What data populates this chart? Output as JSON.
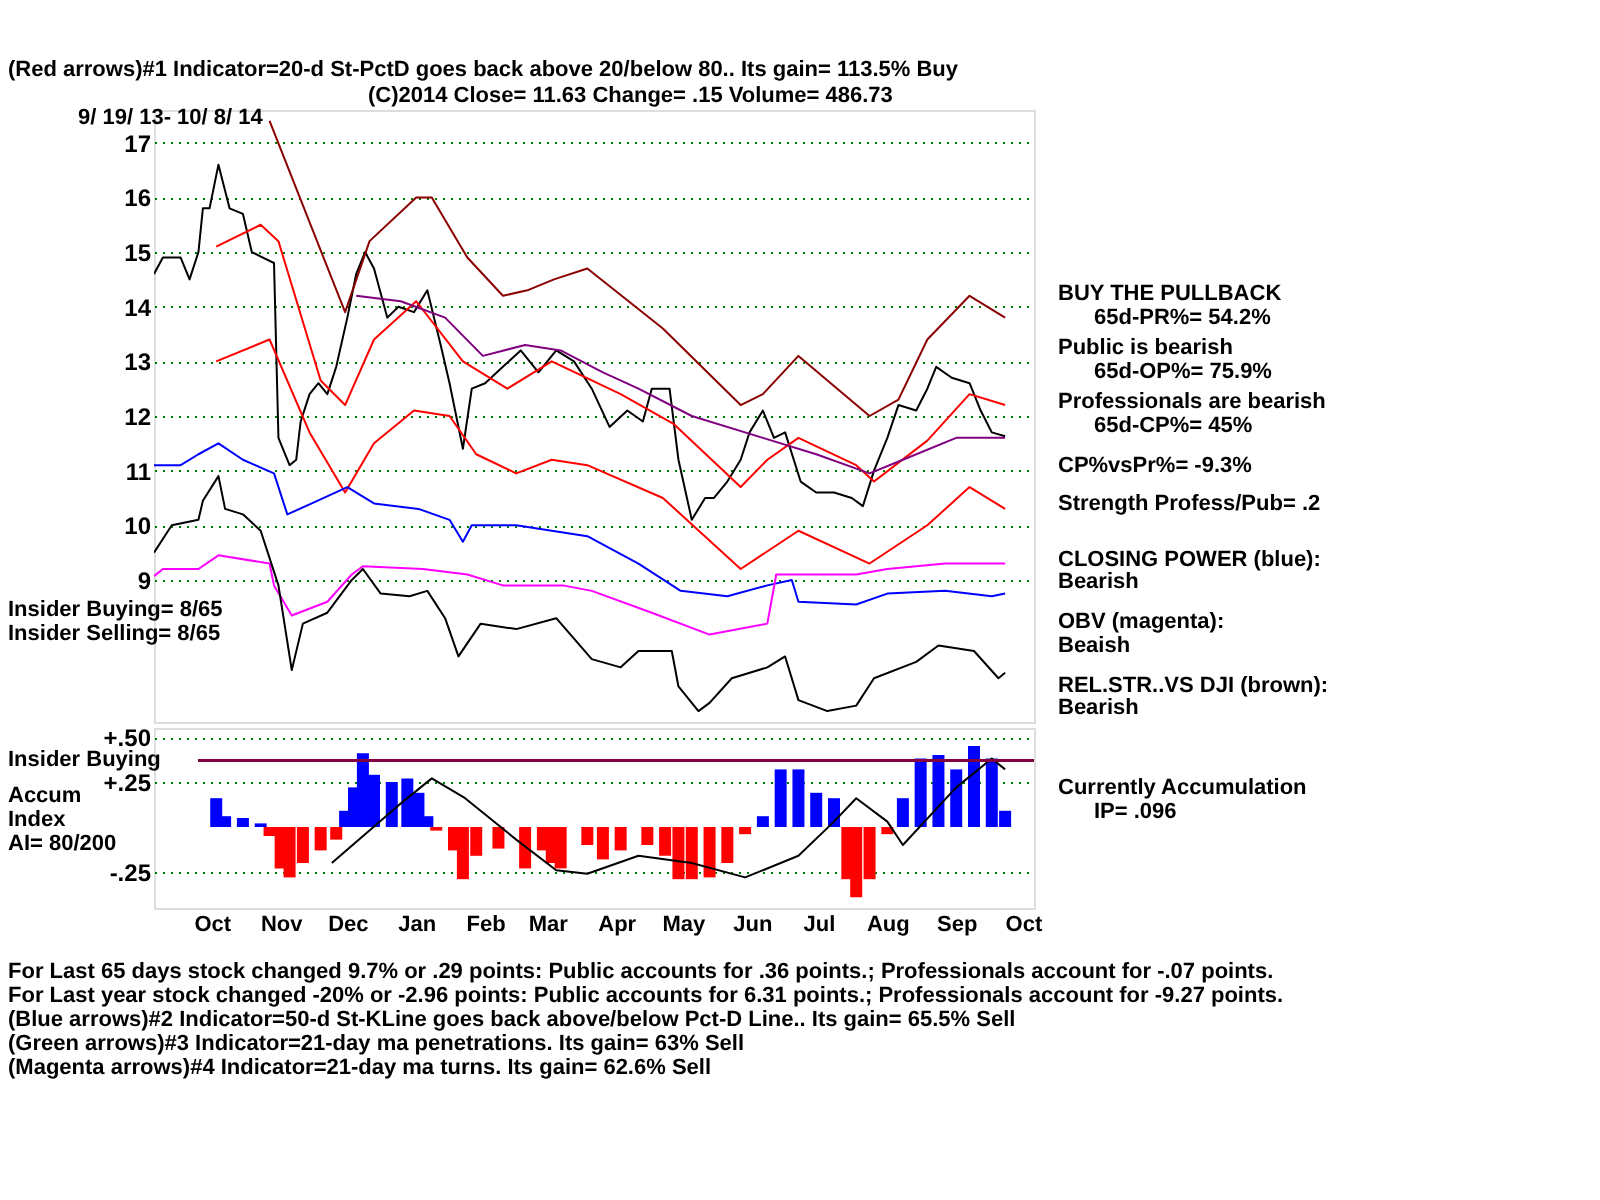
{
  "chart_data": [
    {
      "type": "line",
      "title": "(Red arrows)#1 Indicator=20-d St-PctD goes back above 20/below 80.. Its gain= 113.5% Buy",
      "subtitle": "(C)2014     Close= 11.63  Change= .15 Volume= 486.73",
      "x": [
        "2013-09-19",
        "2013-09-23",
        "2013-10-01",
        "2013-10-05",
        "2013-10-09",
        "2013-10-11",
        "2013-10-14",
        "2013-10-18",
        "2013-10-23",
        "2013-10-29",
        "2013-11-02",
        "2013-11-07",
        "2013-11-12",
        "2013-11-14",
        "2013-11-19",
        "2013-11-22",
        "2013-11-24",
        "2013-11-28",
        "2013-12-02",
        "2013-12-06",
        "2013-12-10",
        "2013-12-15",
        "2013-12-19",
        "2013-12-23",
        "2013-12-27",
        "2014-01-02",
        "2014-01-07",
        "2014-01-14",
        "2014-01-20",
        "2014-01-26",
        "2014-01-30",
        "2014-02-05",
        "2014-02-09",
        "2014-02-15",
        "2014-02-23",
        "2014-03-03",
        "2014-03-11",
        "2014-03-19",
        "2014-03-27",
        "2014-04-04",
        "2014-04-12",
        "2014-04-20",
        "2014-04-27",
        "2014-05-01",
        "2014-05-09",
        "2014-05-13",
        "2014-05-19",
        "2014-05-25",
        "2014-05-29",
        "2014-06-04",
        "2014-06-10",
        "2014-06-14",
        "2014-06-20",
        "2014-06-25",
        "2014-06-30",
        "2014-07-07",
        "2014-07-14",
        "2014-07-22",
        "2014-07-30",
        "2014-08-04",
        "2014-08-09",
        "2014-08-15",
        "2014-08-20",
        "2014-08-28",
        "2014-09-02",
        "2014-09-06",
        "2014-09-13",
        "2014-09-21",
        "2014-09-26",
        "2014-10-01",
        "2014-10-07"
      ],
      "series": [
        {
          "color": "#000000",
          "values": [
            14.6,
            14.9,
            14.9,
            14.5,
            15.0,
            15.8,
            15.8,
            16.6,
            15.8,
            15.7,
            15.0,
            14.9,
            14.8,
            11.6,
            11.1,
            11.2,
            11.9,
            12.4,
            12.6,
            12.4,
            12.9,
            13.8,
            14.6,
            15.0,
            14.7,
            13.8,
            14.0,
            13.9,
            14.3,
            13.3,
            12.6,
            11.4,
            12.5,
            12.6,
            12.9,
            13.2,
            12.8,
            13.2,
            13.0,
            12.5,
            11.8,
            12.1,
            11.9,
            12.5,
            12.5,
            11.2,
            10.1,
            10.5,
            10.5,
            10.8,
            11.2,
            11.7,
            12.1,
            11.6,
            11.7,
            10.8,
            10.6,
            10.6,
            10.5,
            10.35,
            11.0,
            11.6,
            12.2,
            12.1,
            12.5,
            12.9,
            12.7,
            12.6,
            12.1,
            11.7,
            11.63
          ]
        },
        {
          "color": "#8b0000",
          "x": [
            "2013-11-10",
            "2013-12-14",
            "2013-12-25",
            "2014-01-15",
            "2014-01-22",
            "2014-02-07",
            "2014-02-23",
            "2014-03-06",
            "2014-03-18",
            "2014-04-02",
            "2014-05-06",
            "2014-06-10",
            "2014-06-20",
            "2014-07-06",
            "2014-08-07",
            "2014-08-20",
            "2014-09-02",
            "2014-09-21",
            "2014-10-07"
          ],
          "values": [
            17.4,
            13.9,
            15.2,
            16.0,
            16.0,
            14.9,
            14.2,
            14.3,
            14.5,
            14.7,
            13.6,
            12.2,
            12.4,
            13.1,
            12.0,
            12.3,
            13.4,
            14.2,
            13.8
          ]
        },
        {
          "color": "#ff0000",
          "x": [
            "2013-10-17",
            "2013-11-06",
            "2013-11-14",
            "2013-12-03",
            "2013-12-14",
            "2013-12-27",
            "2014-01-15",
            "2014-02-05",
            "2014-02-25",
            "2014-03-17",
            "2014-04-17",
            "2014-05-11",
            "2014-06-10",
            "2014-06-22",
            "2014-07-06",
            "2014-08-01",
            "2014-08-09",
            "2014-09-02",
            "2014-09-21",
            "2014-10-07"
          ],
          "values": [
            15.1,
            15.5,
            15.2,
            12.65,
            12.2,
            13.4,
            14.1,
            13.0,
            12.5,
            13.0,
            12.4,
            11.85,
            10.7,
            11.2,
            11.6,
            11.1,
            10.8,
            11.55,
            12.4,
            12.2
          ]
        },
        {
          "color": "#ff0000",
          "x": [
            "2013-10-17",
            "2013-11-10",
            "2013-11-28",
            "2013-12-14",
            "2013-12-27",
            "2014-01-14",
            "2014-01-30",
            "2014-02-11",
            "2014-03-01",
            "2014-03-17",
            "2014-04-02",
            "2014-05-06",
            "2014-06-10",
            "2014-07-06",
            "2014-08-07",
            "2014-09-02",
            "2014-09-21",
            "2014-10-07"
          ],
          "values": [
            13.0,
            13.4,
            11.7,
            10.6,
            11.5,
            12.1,
            12.0,
            11.3,
            10.95,
            11.2,
            11.1,
            10.5,
            9.2,
            9.9,
            9.3,
            10.0,
            10.7,
            10.3
          ]
        },
        {
          "color": "#800080",
          "x": [
            "2013-12-19",
            "2014-01-08",
            "2014-01-28",
            "2014-02-14",
            "2014-03-05",
            "2014-03-21",
            "2014-04-09",
            "2014-04-25",
            "2014-05-19",
            "2014-06-20",
            "2014-07-14",
            "2014-08-07",
            "2014-08-22",
            "2014-09-15",
            "2014-10-07"
          ],
          "values": [
            14.2,
            14.1,
            13.8,
            13.1,
            13.3,
            13.2,
            12.8,
            12.5,
            12.0,
            11.6,
            11.3,
            10.95,
            11.2,
            11.6,
            11.6
          ]
        },
        {
          "color": "#0000ff",
          "x": [
            "2013-09-19",
            "2013-10-01",
            "2013-10-09",
            "2013-10-18",
            "2013-10-29",
            "2013-11-12",
            "2013-11-18",
            "2013-11-29",
            "2013-12-15",
            "2013-12-27",
            "2014-01-16",
            "2014-01-30",
            "2014-02-05",
            "2014-02-09",
            "2014-03-01",
            "2014-03-17",
            "2014-04-02",
            "2014-04-25",
            "2014-05-14",
            "2014-06-04",
            "2014-06-22",
            "2014-07-03",
            "2014-07-06",
            "2014-08-01",
            "2014-08-15",
            "2014-09-10",
            "2014-10-01",
            "2014-10-07"
          ],
          "values": [
            11.1,
            11.1,
            11.3,
            11.5,
            11.2,
            10.95,
            10.2,
            10.4,
            10.7,
            10.4,
            10.3,
            10.1,
            9.7,
            10.0,
            10.0,
            9.9,
            9.8,
            9.3,
            8.8,
            8.7,
            8.9,
            9.0,
            8.6,
            8.55,
            8.75,
            8.8,
            8.7,
            8.75
          ]
        },
        {
          "color": "#ff00ff",
          "x": [
            "2013-09-19",
            "2013-09-23",
            "2013-10-09",
            "2013-10-18",
            "2013-11-10",
            "2013-11-12",
            "2013-11-20",
            "2013-12-06",
            "2013-12-17",
            "2013-12-22",
            "2014-01-18",
            "2014-02-07",
            "2014-02-23",
            "2014-03-22",
            "2014-04-04",
            "2014-05-01",
            "2014-05-27",
            "2014-06-22",
            "2014-06-26",
            "2014-07-06",
            "2014-08-01",
            "2014-08-15",
            "2014-09-10",
            "2014-10-07"
          ],
          "values": [
            9.07,
            9.2,
            9.2,
            9.45,
            9.3,
            8.9,
            8.35,
            8.6,
            9.1,
            9.25,
            9.2,
            9.1,
            8.9,
            8.9,
            8.8,
            8.4,
            8.0,
            8.2,
            9.1,
            9.1,
            9.1,
            9.2,
            9.3,
            9.3
          ]
        },
        {
          "color": "#000000",
          "x": [
            "2013-09-19",
            "2013-09-27",
            "2013-10-09",
            "2013-10-11",
            "2013-10-18",
            "2013-10-21",
            "2013-10-29",
            "2013-11-06",
            "2013-11-14",
            "2013-11-20",
            "2013-11-25",
            "2013-12-06",
            "2013-12-17",
            "2013-12-22",
            "2013-12-30",
            "2014-01-12",
            "2014-01-20",
            "2014-01-28",
            "2014-02-03",
            "2014-02-13",
            "2014-03-01",
            "2014-03-19",
            "2014-04-04",
            "2014-04-17",
            "2014-04-25",
            "2014-05-10",
            "2014-05-13",
            "2014-05-22",
            "2014-05-27",
            "2014-06-06",
            "2014-06-22",
            "2014-06-30",
            "2014-07-06",
            "2014-07-19",
            "2014-08-01",
            "2014-08-09",
            "2014-08-28",
            "2014-09-07",
            "2014-09-23",
            "2014-10-04",
            "2014-10-07"
          ],
          "values": [
            9.5,
            10.0,
            10.1,
            10.45,
            10.9,
            10.3,
            10.2,
            9.9,
            8.9,
            7.35,
            8.2,
            8.4,
            9.0,
            9.2,
            8.75,
            8.7,
            8.8,
            8.3,
            7.6,
            8.2,
            8.1,
            8.3,
            7.55,
            7.4,
            7.7,
            7.7,
            7.05,
            6.6,
            6.75,
            7.2,
            7.4,
            7.6,
            6.8,
            6.6,
            6.7,
            7.2,
            7.5,
            7.8,
            7.7,
            7.2,
            7.3
          ]
        }
      ],
      "xlim": [
        "2013-09-19",
        "2014-10-20"
      ],
      "ylim": [
        6.4,
        17.6
      ],
      "yticks": [
        9,
        10,
        11,
        12,
        13,
        14,
        15,
        16,
        17
      ],
      "grid": "y",
      "tick_labels": "y",
      "annotations": [
        "9/ 19/ 13- 10/ 8/ 14",
        "BUY THE PULLBACK",
        "65d-PR%= 54.2%",
        "Public is bearish",
        "65d-OP%= 75.9%",
        "Professionals are bearish",
        "65d-CP%= 45%",
        "CP%vsPr%= -9.3%",
        "Strength Profess/Pub= .2",
        "CLOSING POWER (blue):",
        "Bearish",
        "OBV (magenta):",
        "Beaish",
        "REL.STR..VS DJI (brown):",
        "Bearish",
        "Insider Buying= 8/65",
        "Insider Selling= 8/65"
      ]
    },
    {
      "type": "bar",
      "x": [
        "2013-10-17",
        "2013-10-21",
        "2013-10-29",
        "2013-11-06",
        "2013-11-10",
        "2013-11-15",
        "2013-11-19",
        "2013-11-25",
        "2013-12-03",
        "2013-12-10",
        "2013-12-14",
        "2013-12-18",
        "2013-12-22",
        "2013-12-27",
        "2014-01-04",
        "2014-01-11",
        "2014-01-16",
        "2014-01-20",
        "2014-01-24",
        "2014-02-01",
        "2014-02-05",
        "2014-02-11",
        "2014-02-21",
        "2014-03-05",
        "2014-03-13",
        "2014-03-17",
        "2014-03-21",
        "2014-04-02",
        "2014-04-09",
        "2014-04-17",
        "2014-04-29",
        "2014-05-07",
        "2014-05-13",
        "2014-05-19",
        "2014-05-27",
        "2014-06-04",
        "2014-06-12",
        "2014-06-20",
        "2014-06-28",
        "2014-07-06",
        "2014-07-14",
        "2014-07-22",
        "2014-07-28",
        "2014-08-01",
        "2014-08-07",
        "2014-08-15",
        "2014-08-22",
        "2014-08-30",
        "2014-09-07",
        "2014-09-15",
        "2014-09-23",
        "2014-10-01",
        "2014-10-07"
      ],
      "series": [
        {
          "type": "bar",
          "values": [
            0.16,
            0.06,
            0.05,
            0.02,
            -0.05,
            -0.23,
            -0.28,
            -0.2,
            -0.13,
            -0.07,
            0.09,
            0.22,
            0.41,
            0.29,
            0.25,
            0.27,
            0.19,
            0.06,
            -0.02,
            -0.13,
            -0.29,
            -0.16,
            -0.12,
            -0.23,
            -0.13,
            -0.2,
            -0.23,
            -0.1,
            -0.18,
            -0.13,
            -0.1,
            -0.16,
            -0.29,
            -0.29,
            -0.28,
            -0.2,
            -0.04,
            0.06,
            0.32,
            0.32,
            0.19,
            0.16,
            -0.29,
            -0.39,
            -0.29,
            -0.04,
            0.16,
            0.38,
            0.4,
            0.32,
            0.45,
            0.38,
            0.09
          ],
          "colors": [
            "#0000ff",
            "#0000ff",
            "#0000ff",
            "#0000ff",
            "#ff0000",
            "#ff0000",
            "#ff0000",
            "#ff0000",
            "#ff0000",
            "#ff0000",
            "#0000ff",
            "#0000ff",
            "#0000ff",
            "#0000ff",
            "#0000ff",
            "#0000ff",
            "#0000ff",
            "#0000ff",
            "#ff0000",
            "#ff0000",
            "#ff0000",
            "#ff0000",
            "#ff0000",
            "#ff0000",
            "#ff0000",
            "#ff0000",
            "#ff0000",
            "#ff0000",
            "#ff0000",
            "#ff0000",
            "#ff0000",
            "#ff0000",
            "#ff0000",
            "#ff0000",
            "#ff0000",
            "#ff0000",
            "#ff0000",
            "#0000ff",
            "#0000ff",
            "#0000ff",
            "#0000ff",
            "#0000ff",
            "#ff0000",
            "#ff0000",
            "#ff0000",
            "#ff0000",
            "#0000ff",
            "#0000ff",
            "#0000ff",
            "#0000ff",
            "#0000ff",
            "#0000ff",
            "#0000ff"
          ]
        },
        {
          "type": "line",
          "color": "#000000",
          "x": [
            "2013-12-08",
            "2013-12-23",
            "2014-01-07",
            "2014-01-22",
            "2014-02-06",
            "2014-03-01",
            "2014-03-19",
            "2014-04-02",
            "2014-04-25",
            "2014-05-19",
            "2014-06-12",
            "2014-07-06",
            "2014-07-22",
            "2014-08-01",
            "2014-08-15",
            "2014-08-22",
            "2014-09-15",
            "2014-10-01",
            "2014-10-07"
          ],
          "values": [
            -0.2,
            -0.04,
            0.12,
            0.27,
            0.16,
            -0.07,
            -0.24,
            -0.26,
            -0.16,
            -0.2,
            -0.28,
            -0.16,
            0.03,
            0.16,
            0.03,
            -0.1,
            0.22,
            0.38,
            0.32
          ]
        }
      ],
      "ref_lines": [
        {
          "axis": "y",
          "value": 0.37,
          "label": "Insider Buying",
          "color": "#800040"
        }
      ],
      "xlim": [
        "2013-09-19",
        "2014-10-20"
      ],
      "ylim": [
        -0.45,
        0.55
      ],
      "xticks": [
        {
          "value": "2013-10-15",
          "label": "Oct"
        },
        {
          "value": "2013-11-15",
          "label": "Nov"
        },
        {
          "value": "2013-12-15",
          "label": "Dec"
        },
        {
          "value": "2014-01-15",
          "label": "Jan"
        },
        {
          "value": "2014-02-15",
          "label": "Feb"
        },
        {
          "value": "2014-03-15",
          "label": "Mar"
        },
        {
          "value": "2014-04-15",
          "label": "Apr"
        },
        {
          "value": "2014-05-15",
          "label": "May"
        },
        {
          "value": "2014-06-15",
          "label": "Jun"
        },
        {
          "value": "2014-07-15",
          "label": "Jul"
        },
        {
          "value": "2014-08-15",
          "label": "Aug"
        },
        {
          "value": "2014-09-15",
          "label": "Sep"
        },
        {
          "value": "2014-10-15",
          "label": "Oct"
        }
      ],
      "yticks": [
        {
          "value": 0.5,
          "label": "+.50"
        },
        {
          "value": 0.25,
          "label": "+.25"
        },
        {
          "value": -0.25,
          "label": "-.25"
        }
      ],
      "grid": "y",
      "annotations": [
        "Accum",
        "Index",
        "AI= 80/200",
        "Currently Accumulation",
        "IP= .096",
        "For Last 65 days stock changed  9.7% or  .29 points:  Public accounts for  .36 points.;  Professionals account for -.07 points.",
        "For Last year stock changed -20% or -2.96 points:  Public accounts for  6.31 points.;  Professionals account for -9.27 points.",
        "(Blue arrows)#2 Indicator=50-d St-KLine goes back above/below Pct-D Line.. Its gain= 65.5% Sell",
        "(Green arrows)#3 Indicator=21-day ma penetrations. Its gain= 63% Sell",
        "(Magenta arrows)#4 Indicator=21-day ma turns. Its gain= 62.6% Sell"
      ]
    }
  ]
}
